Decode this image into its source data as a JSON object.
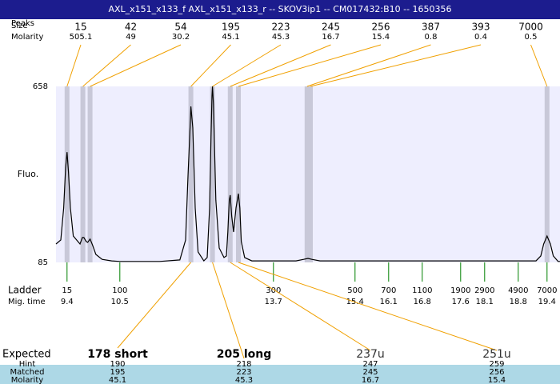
{
  "chart_data": {
    "type": "line",
    "title": "AXL_x151_x133_f  AXL_x151_x133_r -- SKOV3ip1 -- CM017432:B10 -- 1650356",
    "y_label": "Fluo.",
    "ylim": [
      85,
      658
    ],
    "yticks": [
      85,
      658
    ],
    "xlim": [
      9.17,
      19.67
    ],
    "color": "#000000",
    "x": [
      9.17,
      9.27,
      9.33,
      9.37,
      9.4,
      9.43,
      9.47,
      9.53,
      9.6,
      9.67,
      9.72,
      9.75,
      9.8,
      9.83,
      9.88,
      9.93,
      10.0,
      10.13,
      10.33,
      10.5,
      11.33,
      11.75,
      11.87,
      11.92,
      11.97,
      11.98,
      12.02,
      12.07,
      12.13,
      12.25,
      12.32,
      12.37,
      12.4,
      12.42,
      12.43,
      12.45,
      12.5,
      12.57,
      12.67,
      12.72,
      12.75,
      12.78,
      12.8,
      12.83,
      12.87,
      12.92,
      12.97,
      13.0,
      13.03,
      13.1,
      13.25,
      14.17,
      14.33,
      14.42,
      14.5,
      14.67,
      18.0,
      19.17,
      19.27,
      19.33,
      19.4,
      19.47,
      19.53,
      19.63,
      19.67
    ],
    "values": [
      145,
      158,
      262,
      392,
      444,
      379,
      262,
      171,
      158,
      145,
      166,
      166,
      153,
      150,
      161,
      142,
      111,
      95,
      90,
      88,
      88,
      93,
      158,
      366,
      549,
      593,
      523,
      262,
      119,
      90,
      101,
      262,
      497,
      627,
      658,
      601,
      288,
      132,
      101,
      106,
      184,
      288,
      304,
      236,
      184,
      262,
      309,
      262,
      153,
      101,
      90,
      90,
      95,
      98,
      95,
      90,
      90,
      90,
      106,
      145,
      171,
      145,
      106,
      88,
      88
    ],
    "peaks": {
      "size_label": "Size",
      "peaks_label": "Peaks",
      "molarity_label": "Molarity",
      "sizes": [
        15,
        42,
        54,
        195,
        223,
        245,
        256,
        387,
        393,
        7000
      ],
      "molarities": [
        505.1,
        49,
        30.2,
        45.1,
        45.3,
        16.7,
        15.4,
        0.8,
        0.4,
        0.5
      ],
      "times": [
        9.4,
        9.73,
        9.88,
        11.98,
        12.43,
        12.8,
        12.97,
        14.4,
        14.47,
        19.4
      ]
    },
    "ladder": {
      "label": "Ladder",
      "time_label": "Mig. time",
      "sizes": [
        15,
        100,
        300,
        500,
        700,
        1100,
        1900,
        2900,
        4900,
        7000
      ],
      "times": [
        9.4,
        10.5,
        13.7,
        15.4,
        16.1,
        16.8,
        17.6,
        18.1,
        18.8,
        19.4
      ]
    },
    "expected": {
      "label": "Expected",
      "hint_label": "Hint",
      "matched_label": "Matched",
      "molarity_label": "Molarity",
      "names": [
        "178 short",
        "205 long",
        "237u",
        "251u"
      ],
      "hints": [
        190,
        218,
        247,
        259
      ],
      "matched": [
        195,
        223,
        245,
        256
      ],
      "molarities": [
        45.1,
        45.3,
        16.7,
        15.4
      ]
    }
  }
}
